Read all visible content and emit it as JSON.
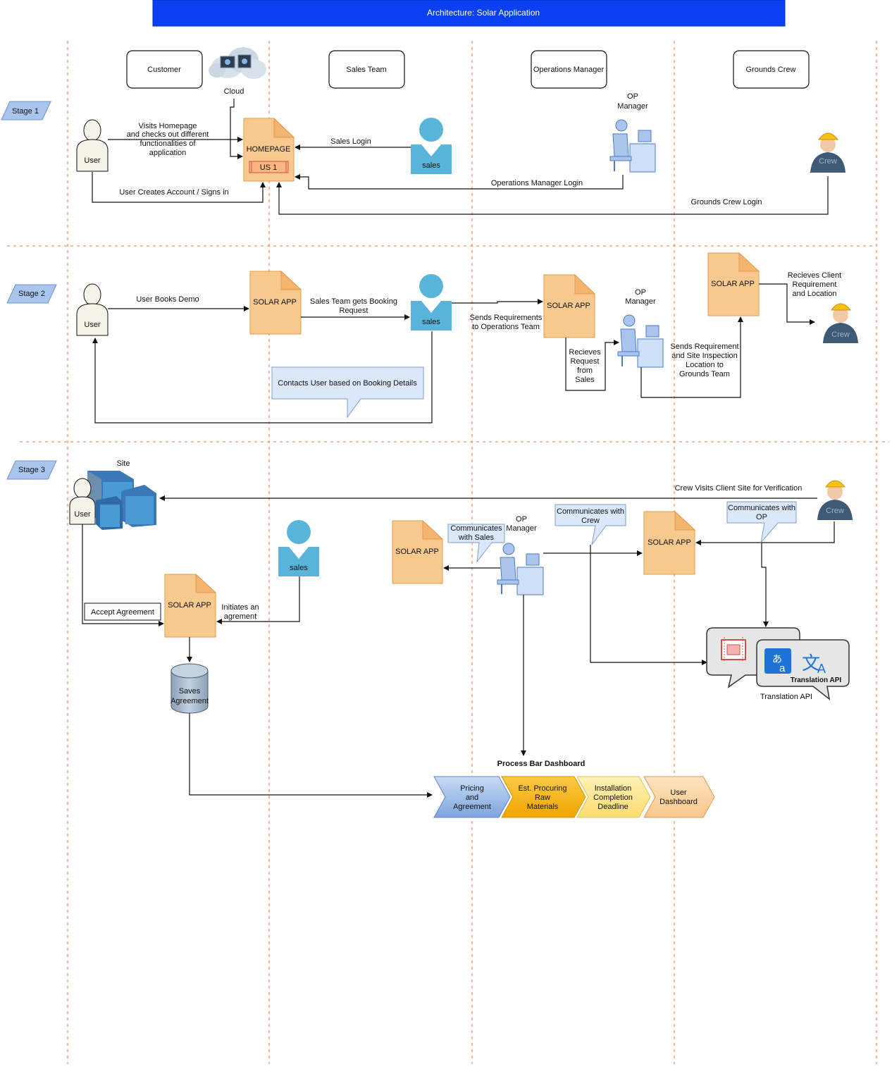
{
  "title": "Architecture: Solar Application",
  "lanes": [
    "Customer",
    "Sales Team",
    "Operations Manager",
    "Grounds Crew"
  ],
  "stages": [
    "Stage 1",
    "Stage 2",
    "Stage 3"
  ],
  "actors": {
    "user": "User",
    "sales": "sales",
    "crew": "Crew",
    "op_manager": "OP Manager",
    "site": "Site",
    "cloud": "Cloud"
  },
  "stage1": {
    "visits": [
      "Visits Homepage",
      "and checks out different",
      "functionalities of",
      "application"
    ],
    "homepage": "HOMEPAGE",
    "us1": "US 1",
    "sales_login": "Sales Login",
    "ops_login": "Operations Manager Login",
    "create_account": "User Creates Account / Signs in",
    "crew_login": "Grounds Crew Login"
  },
  "stage2": {
    "books_demo": "User Books Demo",
    "solar_app": "SOLAR APP",
    "booking_request": [
      "Sales Team gets Booking",
      "Request"
    ],
    "contacts_user": "Contacts User based on Booking Details",
    "sends_requirements": [
      "Sends Requirements",
      "to Operations Team"
    ],
    "receives_request": [
      "Recieves",
      "Request",
      "from",
      "Sales"
    ],
    "sends_requirement_crew": [
      "Sends Requirement",
      "and Site Inspection",
      "Location to",
      "Grounds Team"
    ],
    "receives_client": [
      "Recieves Client",
      "Requirement",
      "and Location"
    ]
  },
  "stage3": {
    "crew_visits": "Crew Visits Client Site for Verification",
    "comm_sales": [
      "Communicates",
      "with Sales"
    ],
    "comm_crew": [
      "Communicates with",
      "Crew"
    ],
    "comm_op": [
      "Communicates with",
      "OP"
    ],
    "accept": "Accept Agreement",
    "initiates": [
      "Initiates an",
      "agrement"
    ],
    "saves": [
      "Saves",
      "Agreement"
    ],
    "translation_api_label": "Translation API",
    "translation_api_caption": "Translation API",
    "dashboard_title": "Process Bar Dashboard",
    "dashboard_steps": [
      [
        "Pricing",
        "and",
        "Agreement"
      ],
      [
        "Est. Procuring",
        "Raw",
        "Materials"
      ],
      [
        "Installation",
        "Completion",
        "Deadline"
      ],
      [
        "User",
        "Dashboard"
      ]
    ]
  },
  "colors": {
    "title_bar": "#0a3ff2",
    "doc_fill": "#f7c98f",
    "actor_blue": "#5ab4d9",
    "bubble_fill": "#dbe8fb",
    "separator": "#f0906a",
    "step1": "#a8c4ec",
    "step2": "#f7b21b",
    "step3": "#fde89a",
    "step4": "#fbd5a5"
  }
}
